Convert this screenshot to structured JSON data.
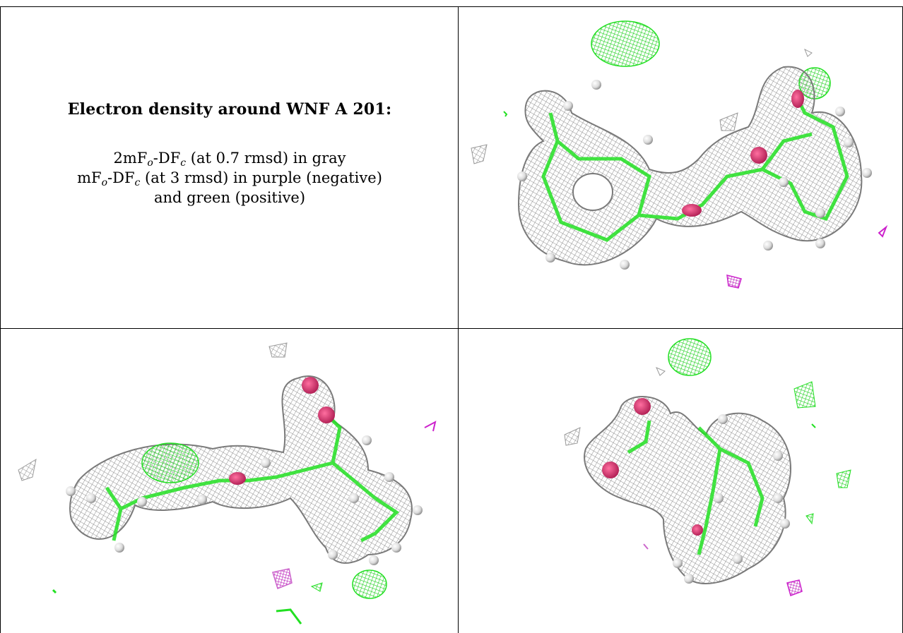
{
  "caption": {
    "title": "Electron density around WNF A 201:",
    "line1": {
      "a": "2mF",
      "o": "o",
      "b": "-DF",
      "c": "c",
      "rest": " (at 0.7 rmsd) in gray"
    },
    "line2": {
      "a": "mF",
      "o": "o",
      "b": "-DF",
      "c": "c",
      "rest": " (at 3 rmsd) in purple (negative)"
    },
    "line3": "and green (positive)"
  },
  "colors": {
    "mesh_gray": "#9a9a9a",
    "positive_green": "#22e022",
    "negative_purple": "#cc22cc",
    "oxygen_red": "#d0306a",
    "atom_white": "#e6e6e6"
  },
  "panels": [
    {
      "name": "view-top-right",
      "description_icon": "density-mesh-icon"
    },
    {
      "name": "view-bottom-left",
      "description_icon": "density-mesh-icon"
    },
    {
      "name": "view-bottom-right",
      "description_icon": "density-mesh-icon"
    }
  ]
}
